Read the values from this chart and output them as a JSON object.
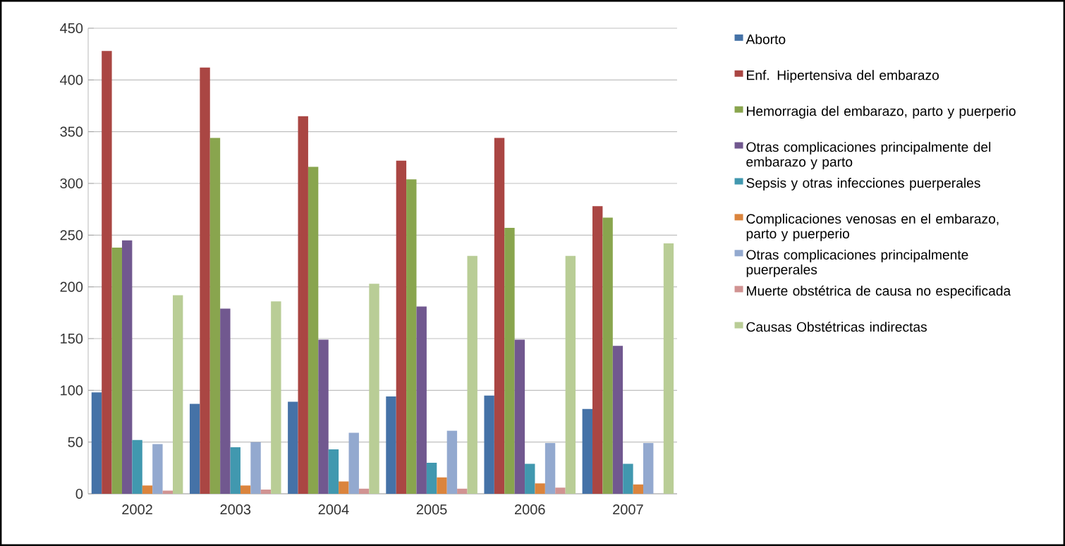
{
  "chart_data": {
    "type": "bar",
    "categories": [
      "2002",
      "2003",
      "2004",
      "2005",
      "2006",
      "2007"
    ],
    "series": [
      {
        "name": "Aborto",
        "color": "#4572a7",
        "values": [
          98,
          87,
          89,
          94,
          95,
          82
        ]
      },
      {
        "name": "Enf. Hipertensiva del embarazo",
        "color": "#aa4643",
        "values": [
          428,
          412,
          365,
          322,
          344,
          278
        ]
      },
      {
        "name": "Hemorragia del embarazo, parto y puerperio",
        "color": "#89a54e",
        "values": [
          238,
          344,
          316,
          304,
          257,
          267
        ]
      },
      {
        "name": "Otras complicaciones principalmente del embarazo y parto",
        "color": "#71588f",
        "values": [
          245,
          179,
          149,
          181,
          149,
          143
        ]
      },
      {
        "name": "Sepsis y otras infecciones puerperales",
        "color": "#4198af",
        "values": [
          52,
          45,
          43,
          30,
          29,
          29
        ]
      },
      {
        "name": "Complicaciones venosas en el embarazo, parto y puerperio",
        "color": "#db843d",
        "values": [
          8,
          8,
          12,
          16,
          10,
          9
        ]
      },
      {
        "name": "Otras complicaciones principalmente puerperales",
        "color": "#93a9cf",
        "values": [
          48,
          50,
          59,
          61,
          49,
          49
        ]
      },
      {
        "name": "Muerte obstétrica de causa no especificada",
        "color": "#d19392",
        "values": [
          3,
          4,
          5,
          5,
          6,
          0
        ]
      },
      {
        "name": "Causas Obstétricas indirectas",
        "color": "#b9cd96",
        "values": [
          192,
          186,
          203,
          230,
          230,
          242
        ]
      }
    ],
    "ylim": [
      0,
      450
    ],
    "yticks": [
      0,
      50,
      100,
      150,
      200,
      250,
      300,
      350,
      400,
      450
    ],
    "grid": "y",
    "legend": "right"
  }
}
